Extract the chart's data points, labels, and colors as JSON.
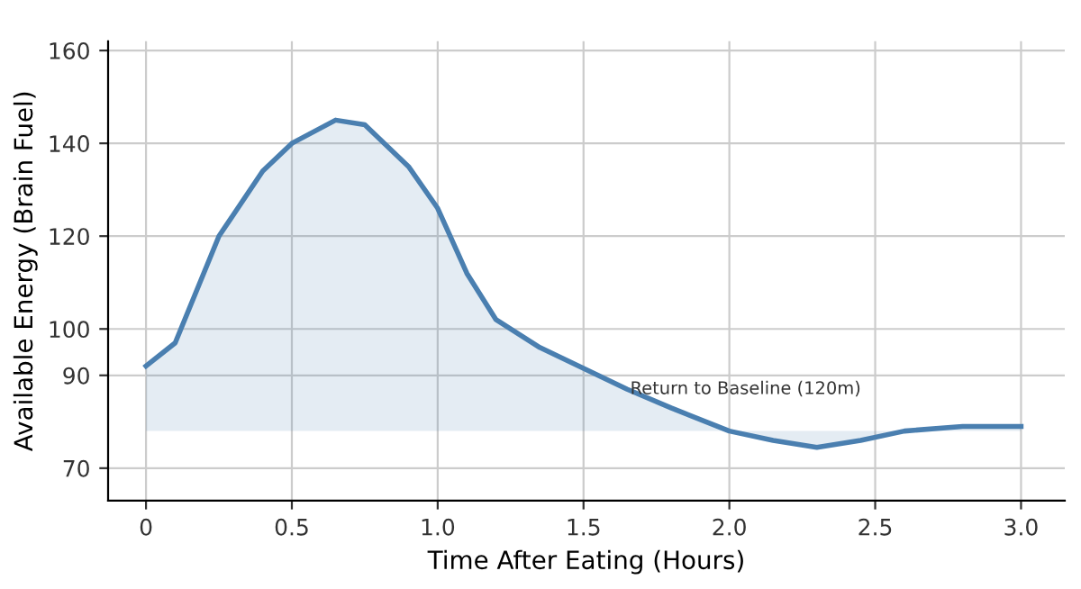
{
  "chart_data": {
    "type": "line",
    "xlabel": "Time After Eating (Hours)",
    "ylabel": "Available Energy (Brain Fuel)",
    "x": [
      0,
      0.1,
      0.25,
      0.4,
      0.5,
      0.65,
      0.75,
      0.9,
      1.0,
      1.1,
      1.2,
      1.35,
      1.5,
      1.65,
      1.8,
      2.0,
      2.15,
      2.3,
      2.45,
      2.6,
      2.8,
      3.0
    ],
    "series": [
      {
        "color": "#4a7fb0",
        "values": [
          92,
          97,
          120,
          134,
          140,
          145,
          144,
          135,
          126,
          112,
          102,
          96,
          91.5,
          87,
          83,
          78,
          76,
          74.5,
          76,
          78,
          79,
          79
        ],
        "lower": [
          78,
          78,
          78,
          78,
          78,
          78,
          78,
          78,
          78,
          78,
          78,
          78,
          78,
          78,
          78,
          78,
          78,
          78,
          78,
          78,
          78,
          78
        ],
        "upper": [
          92,
          97,
          120,
          134,
          140,
          145,
          144,
          135,
          126,
          112,
          102,
          96,
          91.5,
          87,
          83,
          78,
          76,
          74.5,
          76,
          78,
          79,
          79
        ]
      }
    ],
    "xlim": [
      -0.13,
      3.15
    ],
    "xticks": [
      0,
      0.5,
      {
        "value": 1,
        "label": "1.0"
      },
      1.5,
      {
        "value": 2,
        "label": "2.0"
      },
      2.5,
      {
        "value": 3,
        "label": "3.0"
      }
    ],
    "ylim": [
      63,
      162
    ],
    "yticks": [
      70,
      90,
      100,
      120,
      140,
      160
    ],
    "grid": true,
    "marker": "none",
    "line_style": "solid",
    "legend": false,
    "annotations": [
      {
        "text": "Return to Baseline (120m)",
        "x": 1.66,
        "y": 87
      }
    ]
  }
}
